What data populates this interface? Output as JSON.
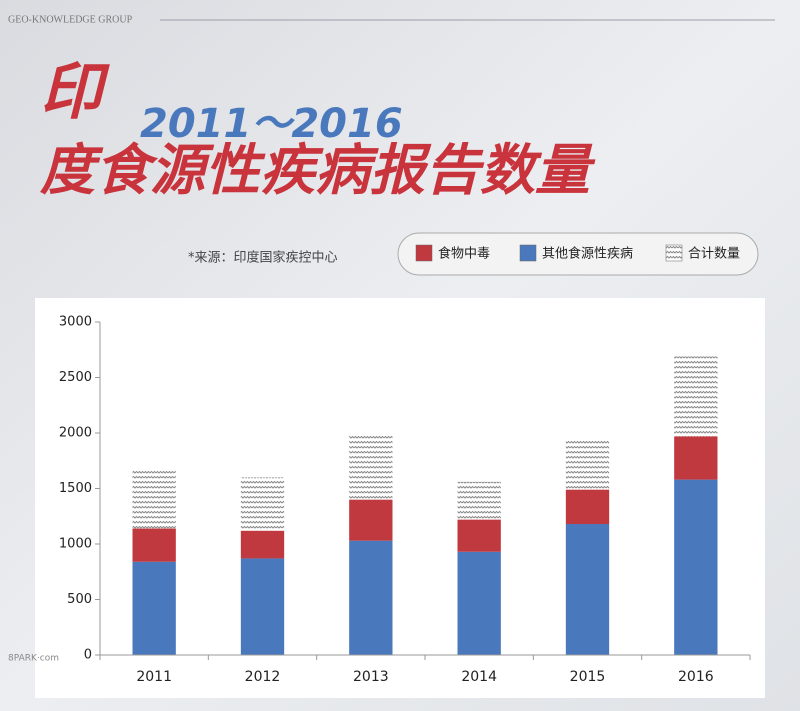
{
  "header": {
    "group": "GEO-KNOWLEDGE GROUP",
    "source": "*来源：印度国家疾控中心",
    "watermark": "8PARK·com"
  },
  "chart_data": {
    "type": "stacked_bar",
    "title": [
      "印",
      "度食源性疾病报告数量"
    ],
    "subtitle": "2011～2016",
    "categories": [
      "2011",
      "2012",
      "2013",
      "2014",
      "2015",
      "2016"
    ],
    "series": [
      {
        "name": "其他食源性疾病",
        "color": "#4a78bd",
        "values": [
          840,
          870,
          1030,
          930,
          1180,
          1580
        ]
      },
      {
        "name": "食物中毒",
        "color": "#c0393f",
        "values": [
          300,
          250,
          370,
          290,
          310,
          390
        ]
      },
      {
        "name": "合计数量",
        "color": "#8a8a8a",
        "values": [
          530,
          480,
          580,
          340,
          450,
          720
        ],
        "hatch": true
      }
    ],
    "ylim": [
      0,
      3000
    ],
    "yticks": [
      0,
      500,
      1000,
      1500,
      2000,
      2500,
      3000
    ]
  }
}
